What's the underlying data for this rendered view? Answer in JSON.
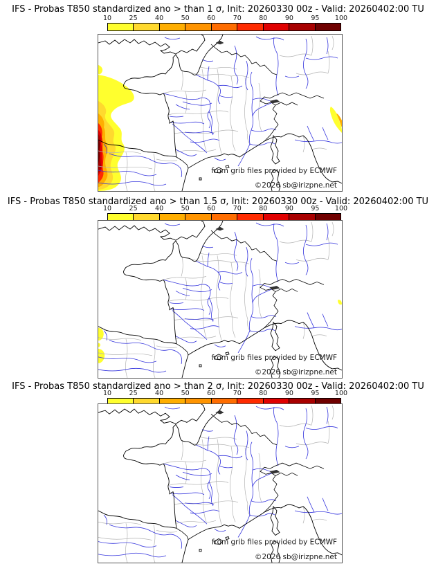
{
  "colorbar": {
    "ticks": [
      "10",
      "25",
      "40",
      "50",
      "60",
      "70",
      "80",
      "90",
      "95",
      "100"
    ],
    "colors": [
      "#ffff2e",
      "#ffd92e",
      "#ffae00",
      "#ff9400",
      "#ff6d00",
      "#ff2b00",
      "#e00000",
      "#a80000",
      "#700000"
    ]
  },
  "attribution": {
    "line1": "from grib files provided by ECMWF",
    "line2": "©2026 sb@irizpne.net"
  },
  "map_colors": {
    "coast": "#000000",
    "borders": "#000000",
    "departments": "#b3b3b3",
    "rivers": "#3333dd",
    "water_patch": "#333333"
  },
  "panels": [
    {
      "id": "sigma1",
      "title": "IFS - Probas T850  standardized ano > than 1 σ, Init: 20260330 00z - Valid: 20260402:00 TU",
      "overlay": "sigma1"
    },
    {
      "id": "sigma15",
      "title": "IFS - Probas T850  standardized ano > than 1.5 σ, Init: 20260330 00z - Valid: 20260402:00 TU",
      "overlay": "sigma15"
    },
    {
      "id": "sigma2",
      "title": "IFS - Probas T850  standardized ano > than 2 σ, Init: 20260330 00z - Valid: 20260402:00 TU",
      "overlay": "sigma2"
    }
  ]
}
